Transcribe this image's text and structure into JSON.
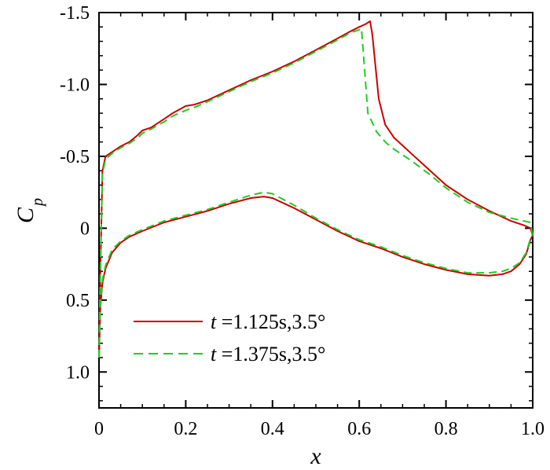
{
  "chart_data": {
    "type": "line",
    "xlabel": "x",
    "ylabel_main": "C",
    "ylabel_sub": "p",
    "xlim": [
      0,
      1.0
    ],
    "ylim_top": -1.5,
    "ylim_bottom": 1.25,
    "y_inverted": true,
    "grid": false,
    "legend_position": "lower-left",
    "x_ticks": [
      0,
      0.2,
      0.4,
      0.6,
      0.8,
      1.0
    ],
    "x_tick_labels": [
      "0",
      "0.2",
      "0.4",
      "0.6",
      "0.8",
      "1.0"
    ],
    "y_ticks": [
      -1.5,
      -1.0,
      -0.5,
      0,
      0.5,
      1.0
    ],
    "y_tick_labels": [
      "-1.5",
      "-1.0",
      "-0.5",
      "0",
      "0.5",
      "1.0"
    ],
    "series": [
      {
        "name": "t =1.125s,3.5°",
        "name_var": "t",
        "name_rest": " =1.125s,3.5°",
        "color": "#cc0000",
        "dash": "solid",
        "upper": {
          "x": [
            0.0,
            0.003,
            0.008,
            0.015,
            0.03,
            0.05,
            0.07,
            0.09,
            0.1,
            0.12,
            0.15,
            0.17,
            0.2,
            0.22,
            0.25,
            0.3,
            0.35,
            0.4,
            0.45,
            0.5,
            0.55,
            0.58,
            0.6,
            0.615,
            0.62,
            0.625,
            0.63,
            0.645,
            0.66,
            0.68,
            0.72,
            0.76,
            0.8,
            0.85,
            0.9,
            0.95,
            0.98,
            0.995,
            1.0
          ],
          "y": [
            0.9,
            0.3,
            -0.4,
            -0.5,
            -0.53,
            -0.57,
            -0.6,
            -0.65,
            -0.68,
            -0.7,
            -0.76,
            -0.8,
            -0.85,
            -0.86,
            -0.89,
            -0.96,
            -1.03,
            -1.09,
            -1.16,
            -1.24,
            -1.32,
            -1.37,
            -1.4,
            -1.42,
            -1.43,
            -1.44,
            -1.35,
            -0.9,
            -0.72,
            -0.63,
            -0.52,
            -0.41,
            -0.3,
            -0.2,
            -0.12,
            -0.05,
            -0.02,
            0.0,
            0.05
          ]
        },
        "lower": {
          "x": [
            0.0,
            0.003,
            0.008,
            0.015,
            0.03,
            0.05,
            0.07,
            0.1,
            0.15,
            0.2,
            0.25,
            0.3,
            0.35,
            0.38,
            0.4,
            0.45,
            0.5,
            0.55,
            0.6,
            0.65,
            0.7,
            0.75,
            0.8,
            0.85,
            0.9,
            0.93,
            0.95,
            0.97,
            0.985,
            0.995,
            1.0
          ],
          "y": [
            0.9,
            0.55,
            0.38,
            0.28,
            0.17,
            0.1,
            0.06,
            0.02,
            -0.04,
            -0.08,
            -0.12,
            -0.17,
            -0.21,
            -0.22,
            -0.21,
            -0.14,
            -0.06,
            0.02,
            0.09,
            0.14,
            0.2,
            0.25,
            0.29,
            0.32,
            0.33,
            0.32,
            0.3,
            0.25,
            0.18,
            0.08,
            0.05
          ]
        }
      },
      {
        "name": "t =1.375s,3.5°",
        "name_var": "t",
        "name_rest": " =1.375s,3.5°",
        "color": "#22cc22",
        "dash": "dashed",
        "upper": {
          "x": [
            0.0,
            0.003,
            0.008,
            0.015,
            0.03,
            0.05,
            0.07,
            0.09,
            0.1,
            0.12,
            0.15,
            0.17,
            0.2,
            0.22,
            0.25,
            0.3,
            0.35,
            0.4,
            0.45,
            0.5,
            0.55,
            0.58,
            0.6,
            0.605,
            0.61,
            0.62,
            0.64,
            0.66,
            0.68,
            0.72,
            0.76,
            0.8,
            0.85,
            0.9,
            0.95,
            0.98,
            0.995,
            1.0
          ],
          "y": [
            0.9,
            0.3,
            -0.38,
            -0.48,
            -0.52,
            -0.56,
            -0.59,
            -0.63,
            -0.66,
            -0.69,
            -0.74,
            -0.78,
            -0.82,
            -0.84,
            -0.88,
            -0.95,
            -1.02,
            -1.08,
            -1.15,
            -1.23,
            -1.31,
            -1.36,
            -1.38,
            -1.39,
            -1.2,
            -0.8,
            -0.67,
            -0.6,
            -0.55,
            -0.47,
            -0.38,
            -0.28,
            -0.18,
            -0.11,
            -0.07,
            -0.05,
            -0.04,
            0.05
          ]
        },
        "lower": {
          "x": [
            0.0,
            0.003,
            0.008,
            0.015,
            0.03,
            0.05,
            0.07,
            0.1,
            0.15,
            0.2,
            0.25,
            0.3,
            0.35,
            0.38,
            0.4,
            0.45,
            0.5,
            0.55,
            0.6,
            0.65,
            0.7,
            0.75,
            0.8,
            0.85,
            0.9,
            0.93,
            0.95,
            0.97,
            0.985,
            0.995,
            1.0
          ],
          "y": [
            0.9,
            0.55,
            0.36,
            0.26,
            0.15,
            0.09,
            0.05,
            0.01,
            -0.05,
            -0.09,
            -0.13,
            -0.18,
            -0.23,
            -0.25,
            -0.24,
            -0.16,
            -0.07,
            0.01,
            0.08,
            0.13,
            0.19,
            0.24,
            0.28,
            0.31,
            0.31,
            0.3,
            0.28,
            0.24,
            0.17,
            0.07,
            0.05
          ]
        }
      }
    ]
  }
}
